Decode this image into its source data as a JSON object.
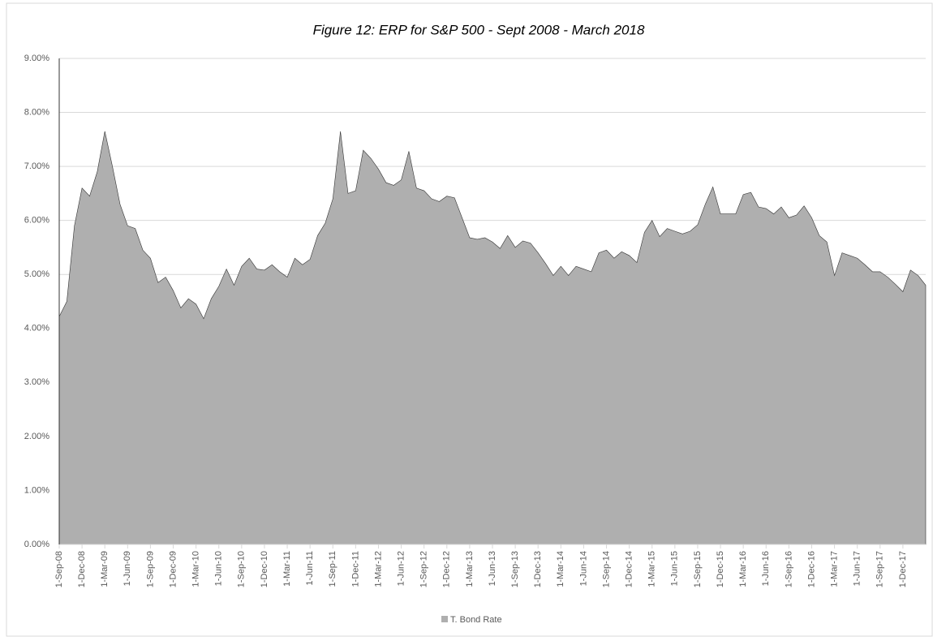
{
  "chart_data": {
    "type": "area",
    "title": "Figure 12: ERP for S&P 500 - Sept 2008 - March 2018",
    "categories": [
      "1-Sep-08",
      null,
      null,
      "1-Dec-08",
      null,
      null,
      "1-Mar-09",
      null,
      null,
      "1-Jun-09",
      null,
      null,
      "1-Sep-09",
      null,
      null,
      "1-Dec-09",
      null,
      null,
      "1-Mar-10",
      null,
      null,
      "1-Jun-10",
      null,
      null,
      "1-Sep-10",
      null,
      null,
      "1-Dec-10",
      null,
      null,
      "1-Mar-11",
      null,
      null,
      "1-Jun-11",
      null,
      null,
      "1-Sep-11",
      null,
      null,
      "1-Dec-11",
      null,
      null,
      "1-Mar-12",
      null,
      null,
      "1-Jun-12",
      null,
      null,
      "1-Sep-12",
      null,
      null,
      "1-Dec-12",
      null,
      null,
      "1-Mar-13",
      null,
      null,
      "1-Jun-13",
      null,
      null,
      "1-Sep-13",
      null,
      null,
      "1-Dec-13",
      null,
      null,
      "1-Mar-14",
      null,
      null,
      "1-Jun-14",
      null,
      null,
      "1-Sep-14",
      null,
      null,
      "1-Dec-14",
      null,
      null,
      "1-Mar-15",
      null,
      null,
      "1-Jun-15",
      null,
      null,
      "1-Sep-15",
      null,
      null,
      "1-Dec-15",
      null,
      null,
      "1-Mar-16",
      null,
      null,
      "1-Jun-16",
      null,
      null,
      "1-Sep-16",
      null,
      null,
      "1-Dec-16",
      null,
      null,
      "1-Mar-17",
      null,
      null,
      "1-Jun-17",
      null,
      null,
      "1-Sep-17",
      null,
      null,
      "1-Dec-17",
      null,
      null,
      null
    ],
    "series": [
      {
        "name": "T. Bond Rate",
        "color": "#afafaf",
        "values": [
          4.22,
          4.5,
          5.9,
          6.6,
          6.45,
          6.9,
          7.65,
          7.0,
          6.3,
          5.9,
          5.85,
          5.45,
          5.3,
          4.85,
          4.95,
          4.7,
          4.38,
          4.55,
          4.45,
          4.18,
          4.55,
          4.78,
          5.1,
          4.8,
          5.15,
          5.3,
          5.1,
          5.08,
          5.18,
          5.05,
          4.95,
          5.3,
          5.18,
          5.28,
          5.72,
          5.95,
          6.4,
          7.65,
          6.5,
          6.55,
          7.3,
          7.15,
          6.95,
          6.7,
          6.65,
          6.75,
          7.28,
          6.6,
          6.55,
          6.4,
          6.35,
          6.45,
          6.42,
          6.05,
          5.68,
          5.65,
          5.68,
          5.6,
          5.48,
          5.72,
          5.5,
          5.62,
          5.58,
          5.4,
          5.2,
          4.98,
          5.15,
          4.98,
          5.15,
          5.1,
          5.05,
          5.4,
          5.45,
          5.3,
          5.42,
          5.35,
          5.22,
          5.78,
          6.0,
          5.7,
          5.85,
          5.8,
          5.75,
          5.8,
          5.92,
          6.3,
          6.62,
          6.12,
          6.12,
          6.12,
          6.48,
          6.52,
          6.25,
          6.22,
          6.12,
          6.25,
          6.05,
          6.1,
          6.27,
          6.05,
          5.72,
          5.6,
          4.98,
          5.4,
          5.35,
          5.3,
          5.18,
          5.05,
          5.05,
          4.95,
          4.82,
          4.68,
          5.08,
          4.98,
          4.8
        ]
      }
    ],
    "ylim": [
      0,
      9
    ],
    "yticks": [
      {
        "value": 0,
        "label": "0.00%"
      },
      {
        "value": 1,
        "label": "1.00%"
      },
      {
        "value": 2,
        "label": "2.00%"
      },
      {
        "value": 3,
        "label": "3.00%"
      },
      {
        "value": 4,
        "label": "4.00%"
      },
      {
        "value": 5,
        "label": "5.00%"
      },
      {
        "value": 6,
        "label": "6.00%"
      },
      {
        "value": 7,
        "label": "7.00%"
      },
      {
        "value": 8,
        "label": "8.00%"
      },
      {
        "value": 9,
        "label": "9.00%"
      }
    ],
    "grid": true,
    "legend": "bottom"
  }
}
